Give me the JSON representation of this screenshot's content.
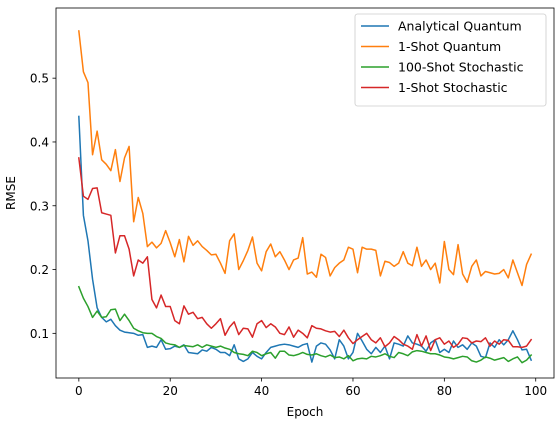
{
  "chart_data": {
    "type": "line",
    "xlabel": "Epoch",
    "ylabel": "RMSE",
    "xlim": [
      -5,
      104
    ],
    "ylim": [
      0.03,
      0.61
    ],
    "xticks": [
      0,
      20,
      40,
      60,
      80,
      100
    ],
    "yticks": [
      0.1,
      0.2,
      0.3,
      0.4,
      0.5
    ],
    "xtick_labels": [
      "0",
      "20",
      "40",
      "60",
      "80",
      "100"
    ],
    "ytick_labels": [
      "0.1",
      "0.2",
      "0.3",
      "0.4",
      "0.5"
    ],
    "grid": false,
    "legend_position": "top-right",
    "x": [
      0,
      1,
      2,
      3,
      4,
      5,
      6,
      7,
      8,
      9,
      10,
      11,
      12,
      13,
      14,
      15,
      16,
      17,
      18,
      19,
      20,
      21,
      22,
      23,
      24,
      25,
      26,
      27,
      28,
      29,
      30,
      31,
      32,
      33,
      34,
      35,
      36,
      37,
      38,
      39,
      40,
      41,
      42,
      43,
      44,
      45,
      46,
      47,
      48,
      49,
      50,
      51,
      52,
      53,
      54,
      55,
      56,
      57,
      58,
      59,
      60,
      61,
      62,
      63,
      64,
      65,
      66,
      67,
      68,
      69,
      70,
      71,
      72,
      73,
      74,
      75,
      76,
      77,
      78,
      79,
      80,
      81,
      82,
      83,
      84,
      85,
      86,
      87,
      88,
      89,
      90,
      91,
      92,
      93,
      94,
      95,
      96,
      97,
      98,
      99
    ],
    "series": [
      {
        "name": "Analytical Quantum",
        "color": "#1f77b4",
        "values": [
          0.44,
          0.285,
          0.245,
          0.185,
          0.14,
          0.125,
          0.118,
          0.122,
          0.112,
          0.105,
          0.102,
          0.101,
          0.1,
          0.097,
          0.098,
          0.078,
          0.08,
          0.078,
          0.09,
          0.075,
          0.076,
          0.08,
          0.078,
          0.082,
          0.07,
          0.069,
          0.068,
          0.074,
          0.072,
          0.078,
          0.075,
          0.07,
          0.07,
          0.065,
          0.082,
          0.06,
          0.056,
          0.06,
          0.07,
          0.064,
          0.06,
          0.07,
          0.078,
          0.08,
          0.082,
          0.083,
          0.082,
          0.08,
          0.078,
          0.082,
          0.084,
          0.055,
          0.08,
          0.085,
          0.083,
          0.074,
          0.06,
          0.09,
          0.08,
          0.06,
          0.07,
          0.1,
          0.088,
          0.075,
          0.068,
          0.078,
          0.07,
          0.08,
          0.06,
          0.085,
          0.083,
          0.08,
          0.096,
          0.085,
          0.083,
          0.08,
          0.072,
          0.085,
          0.09,
          0.07,
          0.075,
          0.07,
          0.088,
          0.078,
          0.082,
          0.075,
          0.085,
          0.08,
          0.064,
          0.062,
          0.085,
          0.078,
          0.09,
          0.082,
          0.09,
          0.104,
          0.09,
          0.074,
          0.075,
          0.058
        ]
      },
      {
        "name": "1-Shot Quantum",
        "color": "#ff7f0e",
        "values": [
          0.574,
          0.51,
          0.493,
          0.38,
          0.417,
          0.372,
          0.365,
          0.355,
          0.388,
          0.338,
          0.375,
          0.393,
          0.275,
          0.313,
          0.288,
          0.236,
          0.243,
          0.234,
          0.241,
          0.261,
          0.242,
          0.22,
          0.247,
          0.212,
          0.252,
          0.238,
          0.245,
          0.236,
          0.23,
          0.223,
          0.224,
          0.21,
          0.194,
          0.245,
          0.256,
          0.2,
          0.214,
          0.23,
          0.251,
          0.21,
          0.198,
          0.228,
          0.24,
          0.22,
          0.228,
          0.215,
          0.2,
          0.215,
          0.218,
          0.25,
          0.193,
          0.196,
          0.188,
          0.224,
          0.219,
          0.19,
          0.203,
          0.21,
          0.215,
          0.235,
          0.232,
          0.195,
          0.235,
          0.232,
          0.232,
          0.23,
          0.19,
          0.213,
          0.211,
          0.205,
          0.21,
          0.228,
          0.21,
          0.206,
          0.235,
          0.205,
          0.215,
          0.2,
          0.21,
          0.179,
          0.244,
          0.2,
          0.192,
          0.239,
          0.193,
          0.18,
          0.205,
          0.215,
          0.19,
          0.197,
          0.195,
          0.193,
          0.194,
          0.2,
          0.187,
          0.215,
          0.195,
          0.175,
          0.208,
          0.224
        ]
      },
      {
        "name": "100-Shot Stochastic",
        "color": "#2ca02c",
        "values": [
          0.173,
          0.155,
          0.142,
          0.125,
          0.135,
          0.125,
          0.126,
          0.137,
          0.138,
          0.12,
          0.13,
          0.12,
          0.108,
          0.104,
          0.101,
          0.1,
          0.1,
          0.095,
          0.092,
          0.085,
          0.083,
          0.082,
          0.078,
          0.081,
          0.08,
          0.079,
          0.082,
          0.078,
          0.082,
          0.08,
          0.078,
          0.08,
          0.077,
          0.075,
          0.07,
          0.068,
          0.067,
          0.065,
          0.072,
          0.07,
          0.065,
          0.068,
          0.07,
          0.061,
          0.072,
          0.072,
          0.066,
          0.065,
          0.067,
          0.07,
          0.067,
          0.066,
          0.068,
          0.065,
          0.063,
          0.066,
          0.062,
          0.063,
          0.06,
          0.065,
          0.057,
          0.06,
          0.061,
          0.06,
          0.064,
          0.063,
          0.065,
          0.068,
          0.064,
          0.062,
          0.07,
          0.068,
          0.065,
          0.071,
          0.073,
          0.072,
          0.07,
          0.068,
          0.068,
          0.066,
          0.063,
          0.062,
          0.06,
          0.062,
          0.064,
          0.063,
          0.057,
          0.055,
          0.058,
          0.063,
          0.061,
          0.058,
          0.06,
          0.062,
          0.056,
          0.06,
          0.063,
          0.054,
          0.058,
          0.066
        ]
      },
      {
        "name": "1-Shot Stochastic",
        "color": "#d62728",
        "values": [
          0.375,
          0.315,
          0.31,
          0.327,
          0.328,
          0.289,
          0.287,
          0.285,
          0.226,
          0.253,
          0.253,
          0.232,
          0.19,
          0.215,
          0.21,
          0.22,
          0.153,
          0.14,
          0.16,
          0.142,
          0.142,
          0.12,
          0.115,
          0.143,
          0.13,
          0.133,
          0.123,
          0.125,
          0.115,
          0.108,
          0.115,
          0.123,
          0.097,
          0.11,
          0.118,
          0.098,
          0.108,
          0.107,
          0.094,
          0.115,
          0.12,
          0.109,
          0.115,
          0.11,
          0.1,
          0.098,
          0.11,
          0.094,
          0.105,
          0.1,
          0.093,
          0.112,
          0.108,
          0.107,
          0.104,
          0.102,
          0.103,
          0.095,
          0.105,
          0.093,
          0.084,
          0.09,
          0.095,
          0.1,
          0.09,
          0.085,
          0.093,
          0.079,
          0.085,
          0.095,
          0.09,
          0.083,
          0.08,
          0.075,
          0.098,
          0.08,
          0.096,
          0.073,
          0.09,
          0.093,
          0.083,
          0.088,
          0.078,
          0.083,
          0.093,
          0.092,
          0.085,
          0.088,
          0.087,
          0.093,
          0.08,
          0.088,
          0.083,
          0.09,
          0.089,
          0.079,
          0.079,
          0.078,
          0.08,
          0.09
        ]
      }
    ]
  }
}
